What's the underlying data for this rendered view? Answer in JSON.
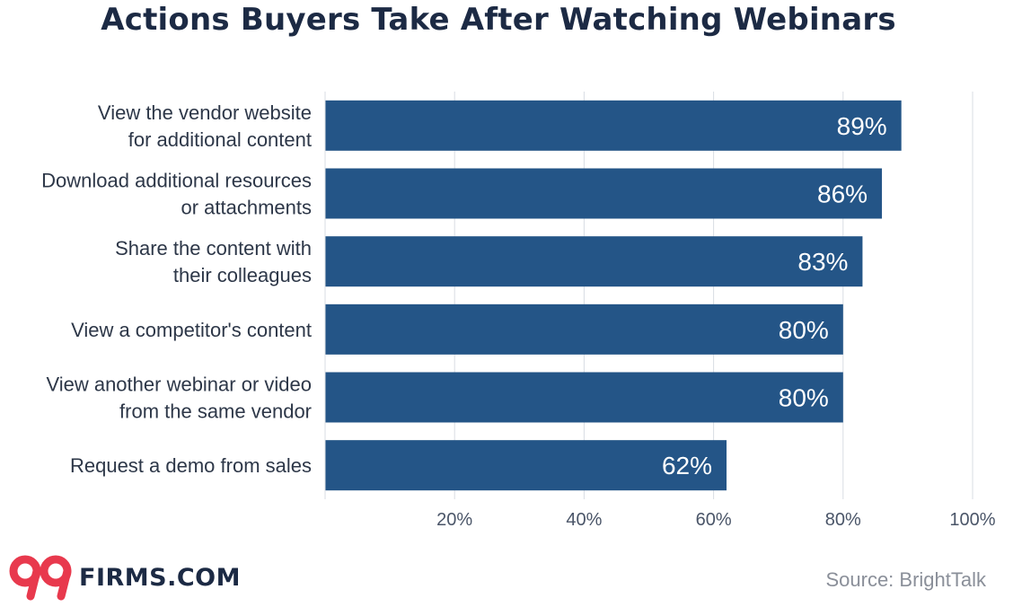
{
  "chart_data": {
    "type": "bar",
    "orientation": "horizontal",
    "title": "Actions Buyers Take After Watching Webinars",
    "categories": [
      [
        "View the vendor website",
        "for additional content"
      ],
      [
        "Download additional resources",
        "or attachments"
      ],
      [
        "Share the content with",
        "their colleagues"
      ],
      [
        "View a competitor's content"
      ],
      [
        "View another webinar or video",
        "from the same vendor"
      ],
      [
        "Request a demo from sales"
      ]
    ],
    "values": [
      89,
      86,
      83,
      80,
      80,
      62
    ],
    "value_labels": [
      "89%",
      "86%",
      "83%",
      "80%",
      "80%",
      "62%"
    ],
    "xlim": [
      0,
      100
    ],
    "xticks": [
      20,
      40,
      60,
      80,
      100
    ],
    "xtick_labels": [
      "20%",
      "40%",
      "60%",
      "80%",
      "100%"
    ],
    "grid": true,
    "bar_color": "#245587",
    "grid_color": "#d9dde3"
  },
  "brand": {
    "logo_mark": "99",
    "logo_text": "FIRMS.COM",
    "logo_color": "#e8394d"
  },
  "source": "Source: BrightTalk"
}
